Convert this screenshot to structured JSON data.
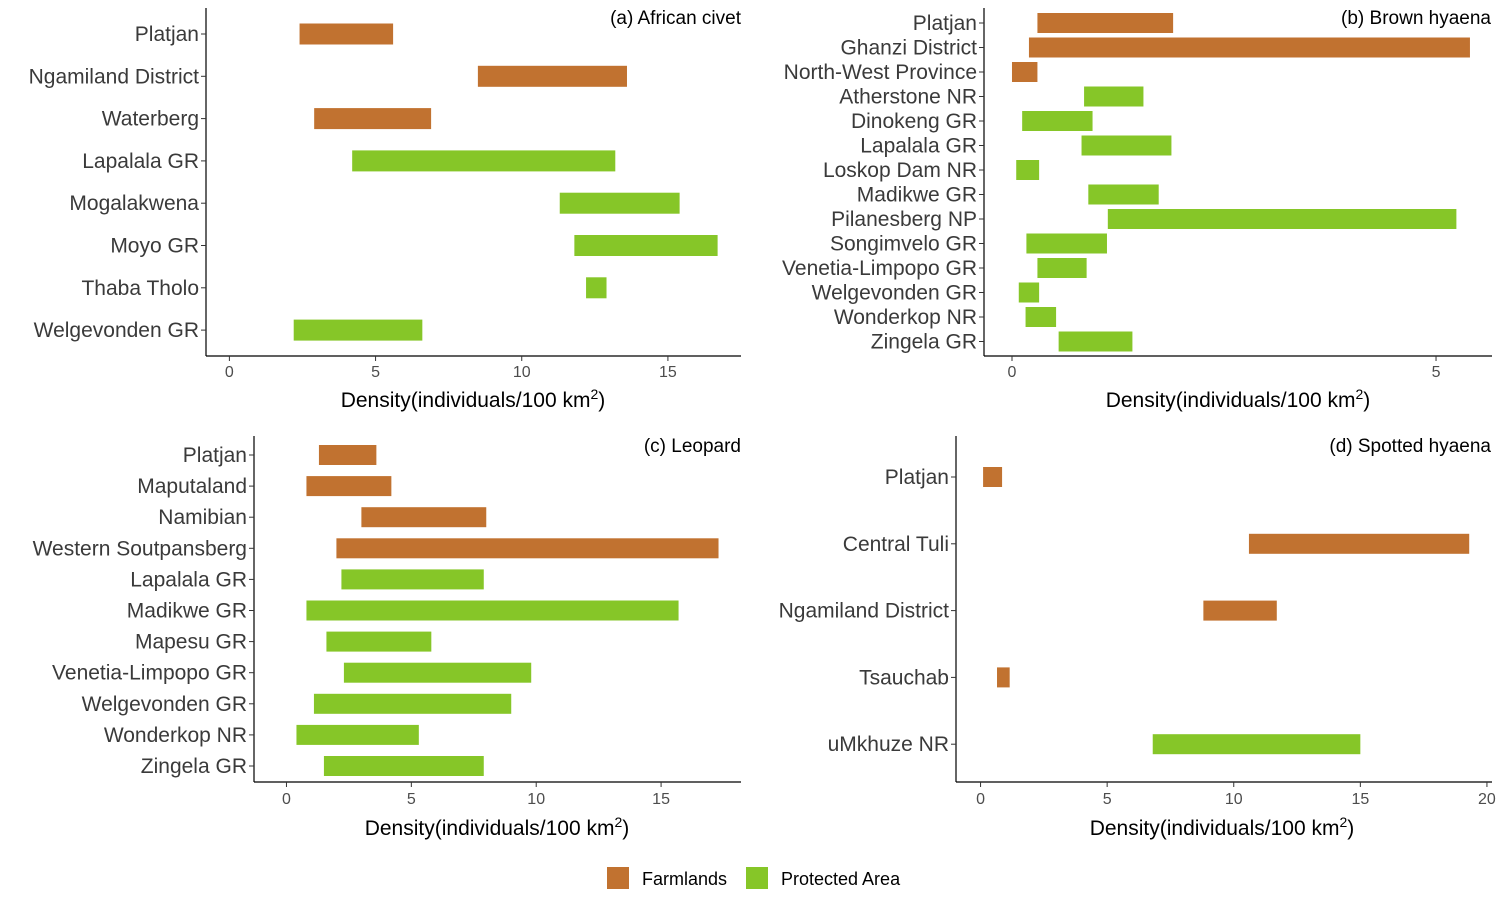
{
  "colors": {
    "farmlands": "#C17230",
    "protected": "#86C628",
    "axis": "#000000"
  },
  "legend": {
    "items": [
      {
        "key": "farmlands",
        "label": "Farmlands"
      },
      {
        "key": "protected",
        "label": "Protected Area"
      }
    ]
  },
  "chart_data": [
    {
      "type": "bar",
      "orientation": "horizontal-range",
      "title": "(a) African civet",
      "xlabel_main": "Density",
      "xlabel_inner": "individuals",
      "xlabel_unit": "100 km",
      "xlabel_sup": "2",
      "xlim": [
        -0.8,
        17.5
      ],
      "xticks": [
        0,
        5,
        10,
        15
      ],
      "categories": [
        "Platjan",
        "Ngamiland District",
        "Waterberg",
        "Lapalala GR",
        "Mogalakwena",
        "Moyo GR",
        "Thaba Tholo",
        "Welgevonden GR"
      ],
      "bars": [
        {
          "category": "Platjan",
          "low": 2.4,
          "high": 5.6,
          "group": "farmlands"
        },
        {
          "category": "Ngamiland District",
          "low": 8.5,
          "high": 13.6,
          "group": "farmlands"
        },
        {
          "category": "Waterberg",
          "low": 2.9,
          "high": 6.9,
          "group": "farmlands"
        },
        {
          "category": "Lapalala GR",
          "low": 4.2,
          "high": 13.2,
          "group": "protected"
        },
        {
          "category": "Mogalakwena",
          "low": 11.3,
          "high": 15.4,
          "group": "protected"
        },
        {
          "category": "Moyo GR",
          "low": 11.8,
          "high": 16.7,
          "group": "protected"
        },
        {
          "category": "Thaba Tholo",
          "low": 12.2,
          "high": 12.9,
          "group": "protected"
        },
        {
          "category": "Welgevonden GR",
          "low": 2.2,
          "high": 6.6,
          "group": "protected"
        }
      ]
    },
    {
      "type": "bar",
      "orientation": "horizontal-range",
      "title": "(b) Brown hyaena",
      "xlabel_main": "Density",
      "xlabel_inner": "individuals",
      "xlabel_unit": "100 km",
      "xlabel_sup": "2",
      "xlim": [
        -0.33,
        5.66
      ],
      "xticks": [
        0,
        5
      ],
      "categories": [
        "Platjan",
        "Ghanzi District",
        "North-West Province",
        "Atherstone NR",
        "Dinokeng GR",
        "Lapalala GR",
        "Loskop Dam NR",
        "Madikwe GR",
        "Pilanesberg NP",
        "Songimvelo GR",
        "Venetia-Limpopo GR",
        "Welgevonden GR",
        "Wonderkop NR",
        "Zingela GR"
      ],
      "bars": [
        {
          "category": "Platjan",
          "low": 0.3,
          "high": 1.9,
          "group": "farmlands"
        },
        {
          "category": "Ghanzi District",
          "low": 0.2,
          "high": 5.4,
          "group": "farmlands"
        },
        {
          "category": "North-West Province",
          "low": 0.0,
          "high": 0.3,
          "group": "farmlands"
        },
        {
          "category": "Atherstone NR",
          "low": 0.85,
          "high": 1.55,
          "group": "protected"
        },
        {
          "category": "Dinokeng GR",
          "low": 0.12,
          "high": 0.95,
          "group": "protected"
        },
        {
          "category": "Lapalala GR",
          "low": 0.82,
          "high": 1.88,
          "group": "protected"
        },
        {
          "category": "Loskop Dam NR",
          "low": 0.05,
          "high": 0.32,
          "group": "protected"
        },
        {
          "category": "Madikwe GR",
          "low": 0.9,
          "high": 1.73,
          "group": "protected"
        },
        {
          "category": "Pilanesberg NP",
          "low": 1.13,
          "high": 5.24,
          "group": "protected"
        },
        {
          "category": "Songimvelo GR",
          "low": 0.17,
          "high": 1.12,
          "group": "protected"
        },
        {
          "category": "Venetia-Limpopo GR",
          "low": 0.3,
          "high": 0.88,
          "group": "protected"
        },
        {
          "category": "Welgevonden GR",
          "low": 0.08,
          "high": 0.32,
          "group": "protected"
        },
        {
          "category": "Wonderkop NR",
          "low": 0.16,
          "high": 0.52,
          "group": "protected"
        },
        {
          "category": "Zingela GR",
          "low": 0.55,
          "high": 1.42,
          "group": "protected"
        }
      ]
    },
    {
      "type": "bar",
      "orientation": "horizontal-range",
      "title": "(c) Leopard",
      "xlabel_main": "Density",
      "xlabel_inner": "individuals",
      "xlabel_unit": "100 km",
      "xlabel_sup": "2",
      "xlim": [
        -1.3,
        18.2
      ],
      "xticks": [
        0,
        5,
        10,
        15
      ],
      "categories": [
        "Platjan",
        "Maputaland",
        "Namibian",
        "Western Soutpansberg",
        "Lapalala GR",
        "Madikwe GR",
        "Mapesu GR",
        "Venetia-Limpopo GR",
        "Welgevonden GR",
        "Wonderkop NR",
        "Zingela GR"
      ],
      "bars": [
        {
          "category": "Platjan",
          "low": 1.3,
          "high": 3.6,
          "group": "farmlands"
        },
        {
          "category": "Maputaland",
          "low": 0.8,
          "high": 4.2,
          "group": "farmlands"
        },
        {
          "category": "Namibian",
          "low": 3.0,
          "high": 8.0,
          "group": "farmlands"
        },
        {
          "category": "Western Soutpansberg",
          "low": 2.0,
          "high": 17.3,
          "group": "farmlands"
        },
        {
          "category": "Lapalala GR",
          "low": 2.2,
          "high": 7.9,
          "group": "protected"
        },
        {
          "category": "Madikwe GR",
          "low": 0.8,
          "high": 15.7,
          "group": "protected"
        },
        {
          "category": "Mapesu GR",
          "low": 1.6,
          "high": 5.8,
          "group": "protected"
        },
        {
          "category": "Venetia-Limpopo GR",
          "low": 2.3,
          "high": 9.8,
          "group": "protected"
        },
        {
          "category": "Welgevonden GR",
          "low": 1.1,
          "high": 9.0,
          "group": "protected"
        },
        {
          "category": "Wonderkop NR",
          "low": 0.4,
          "high": 5.3,
          "group": "protected"
        },
        {
          "category": "Zingela GR",
          "low": 1.5,
          "high": 7.9,
          "group": "protected"
        }
      ]
    },
    {
      "type": "bar",
      "orientation": "horizontal-range",
      "title": "(d) Spotted hyaena",
      "xlabel_main": "Density",
      "xlabel_inner": "individuals",
      "xlabel_unit": "100 km",
      "xlabel_sup": "2",
      "xlim": [
        -0.97,
        20.2
      ],
      "xticks": [
        0,
        5,
        10,
        15,
        20
      ],
      "categories": [
        "Platjan",
        "Central Tuli",
        "Ngamiland District",
        "Tsauchab",
        "uMkhuze NR"
      ],
      "bars": [
        {
          "category": "Platjan",
          "low": 0.1,
          "high": 0.85,
          "group": "farmlands"
        },
        {
          "category": "Central Tuli",
          "low": 10.6,
          "high": 19.3,
          "group": "farmlands"
        },
        {
          "category": "Ngamiland District",
          "low": 8.8,
          "high": 11.7,
          "group": "farmlands"
        },
        {
          "category": "Tsauchab",
          "low": 0.65,
          "high": 1.15,
          "group": "farmlands"
        },
        {
          "category": "uMkhuze NR",
          "low": 6.8,
          "high": 15.0,
          "group": "protected"
        }
      ]
    }
  ]
}
